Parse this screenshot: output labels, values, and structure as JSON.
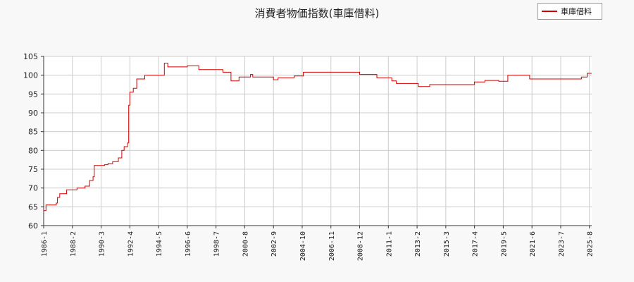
{
  "chart_data": {
    "type": "line",
    "title": "消費者物価指数(車庫借料)",
    "series": [
      {
        "name": "車庫借料",
        "color": "#d40000",
        "points": [
          [
            "1986-01",
            64.0
          ],
          [
            "1986-03",
            65.5
          ],
          [
            "1986-12",
            66.0
          ],
          [
            "1987-01",
            67.5
          ],
          [
            "1987-03",
            68.5
          ],
          [
            "1987-09",
            69.5
          ],
          [
            "1988-06",
            70.0
          ],
          [
            "1989-01",
            70.5
          ],
          [
            "1989-05",
            72.0
          ],
          [
            "1989-08",
            73.0
          ],
          [
            "1989-09",
            76.0
          ],
          [
            "1990-06",
            76.2
          ],
          [
            "1990-09",
            76.5
          ],
          [
            "1991-01",
            77.0
          ],
          [
            "1991-06",
            78.0
          ],
          [
            "1991-09",
            80.0
          ],
          [
            "1991-11",
            81.0
          ],
          [
            "1992-02",
            82.0
          ],
          [
            "1992-03",
            92.0
          ],
          [
            "1992-04",
            95.5
          ],
          [
            "1992-07",
            96.5
          ],
          [
            "1992-10",
            99.0
          ],
          [
            "1993-05",
            100.0
          ],
          [
            "1994-06",
            100.0
          ],
          [
            "1994-10",
            103.2
          ],
          [
            "1995-01",
            102.2
          ],
          [
            "1996-06",
            102.5
          ],
          [
            "1997-04",
            101.5
          ],
          [
            "1998-12",
            101.5
          ],
          [
            "1999-01",
            100.8
          ],
          [
            "1999-08",
            98.5
          ],
          [
            "2000-03",
            99.5
          ],
          [
            "2001-01",
            100.2
          ],
          [
            "2001-03",
            99.5
          ],
          [
            "2002-09",
            98.8
          ],
          [
            "2003-01",
            99.3
          ],
          [
            "2004-01",
            99.3
          ],
          [
            "2004-03",
            99.8
          ],
          [
            "2004-11",
            100.8
          ],
          [
            "2008-12",
            100.2
          ],
          [
            "2010-03",
            99.3
          ],
          [
            "2011-04",
            98.5
          ],
          [
            "2011-08",
            97.8
          ],
          [
            "2013-03",
            97.0
          ],
          [
            "2014-01",
            97.5
          ],
          [
            "2017-04",
            98.2
          ],
          [
            "2018-01",
            98.6
          ],
          [
            "2019-01",
            98.4
          ],
          [
            "2019-09",
            100.0
          ],
          [
            "2021-04",
            99.0
          ],
          [
            "2024-12",
            99.0
          ],
          [
            "2025-01",
            99.5
          ],
          [
            "2025-06",
            100.5
          ],
          [
            "2025-08",
            100.5
          ]
        ]
      }
    ],
    "x_ticks": [
      "1986-1",
      "1988-2",
      "1990-3",
      "1992-4",
      "1994-5",
      "1996-6",
      "1998-7",
      "2000-8",
      "2002-9",
      "2004-10",
      "2006-11",
      "2008-12",
      "2011-1",
      "2013-2",
      "2015-3",
      "2017-4",
      "2019-5",
      "2021-6",
      "2023-7",
      "2025-8"
    ],
    "y_ticks": [
      60,
      65,
      70,
      75,
      80,
      85,
      90,
      95,
      100,
      105
    ],
    "xlim": [
      "1986-01",
      "2025-10"
    ],
    "ylim": [
      60,
      105
    ],
    "grid": true,
    "legend_position": "top-right"
  }
}
